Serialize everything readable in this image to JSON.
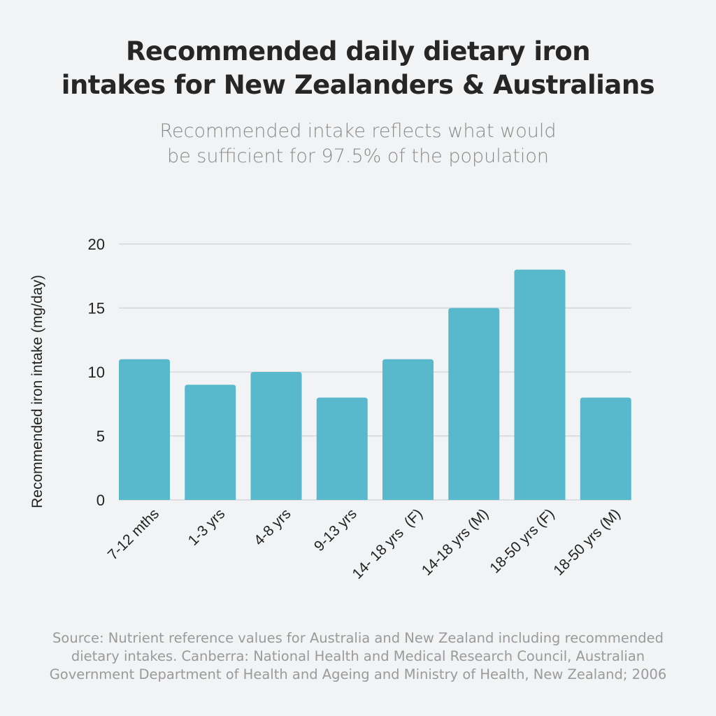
{
  "chart_data": {
    "type": "bar",
    "title": [
      "Recommended daily dietary iron",
      "intakes for New Zealanders & Australians"
    ],
    "subtitle": [
      "Recommended intake reflects what would",
      "be sufficient for 97.5% of the population"
    ],
    "xlabel": "",
    "ylabel": "Recommended iron intake (mg/day)",
    "categories": [
      "7-12 mths",
      "1-3 yrs",
      "4-8 yrs",
      "9-13 yrs",
      "14- 18 yrs  (F)",
      "14-18 yrs (M)",
      "18-50 yrs (F)",
      "18-50 yrs (M)"
    ],
    "values": [
      11,
      9,
      10,
      8,
      11,
      15,
      18,
      8
    ],
    "ylim": [
      0,
      20
    ],
    "yticks": [
      0,
      5,
      10,
      15,
      20
    ],
    "grid": true,
    "legend": "none",
    "colors": {
      "bar": "#58b9cc",
      "grid": "#cfd3d6",
      "background": "#f1f3f4"
    },
    "source": "Source: Nutrient reference values for Australia and New Zealand including recommended dietary intakes. Canberra: National Health and Medical Research Council, Australian Government Department of Health and Ageing and Ministry of Health, New Zealand; 2006"
  }
}
